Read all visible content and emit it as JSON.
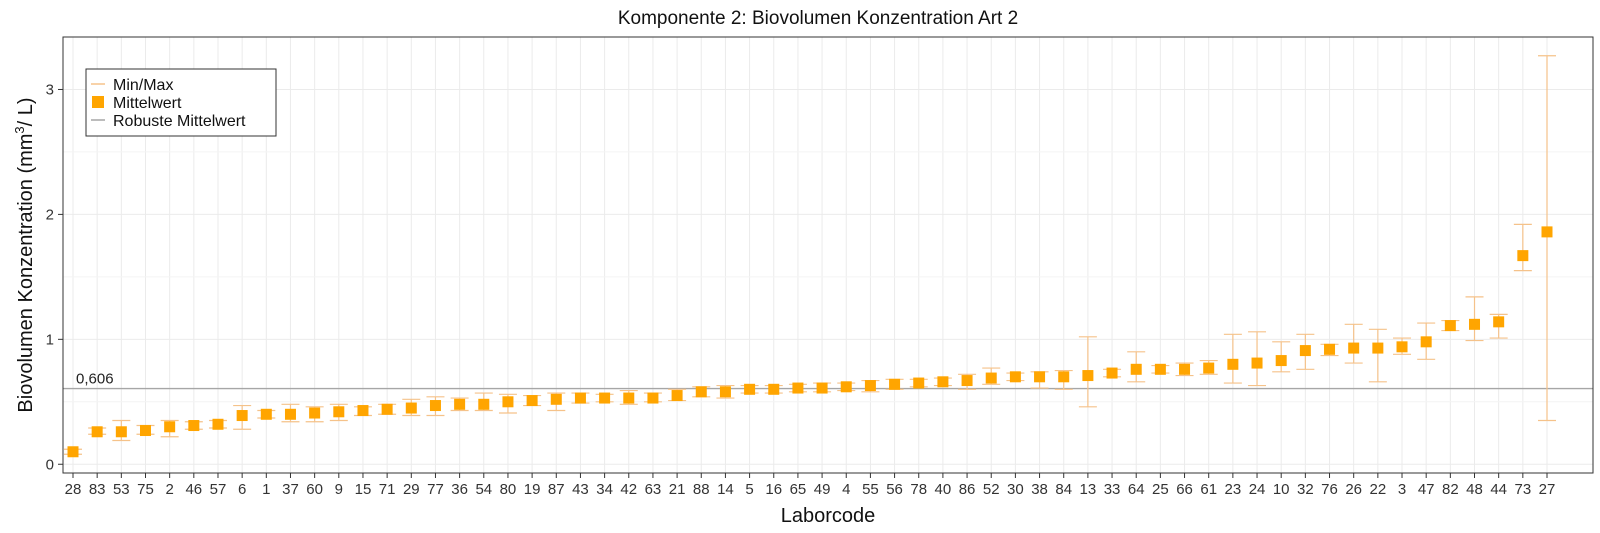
{
  "chart_data": {
    "type": "scatter",
    "title": "Komponente 2: Biovolumen Konzentration Art 2",
    "xlabel": "Laborcode",
    "ylabel_main": "Biovolumen Konzentration  (mm",
    "ylabel_sup": "3",
    "ylabel_tail": "/ L)",
    "ylim": [
      -0.07,
      3.42
    ],
    "yticks": [
      0,
      1,
      2,
      3
    ],
    "ytick_labels": [
      "0",
      "1",
      "2",
      "3"
    ],
    "grid": true,
    "legend_position": "top-left",
    "legend": {
      "minmax": "Min/Max",
      "mean": "Mittelwert",
      "robust": "Robuste Mittelwert"
    },
    "reference_line": {
      "value": 0.606,
      "label": "0,606"
    },
    "colors": {
      "marker": "#FFA500",
      "errorbar": "#F5C28A",
      "refline": "#A6A6A6",
      "grid": "#EBEBEB",
      "frame": "#333333"
    },
    "categories": [
      "28",
      "83",
      "53",
      "75",
      "2",
      "46",
      "57",
      "6",
      "1",
      "37",
      "60",
      "9",
      "15",
      "71",
      "29",
      "77",
      "36",
      "54",
      "80",
      "19",
      "87",
      "43",
      "34",
      "42",
      "63",
      "21",
      "88",
      "14",
      "5",
      "16",
      "65",
      "49",
      "4",
      "55",
      "56",
      "78",
      "40",
      "86",
      "52",
      "30",
      "38",
      "84",
      "13",
      "33",
      "64",
      "25",
      "66",
      "61",
      "23",
      "24",
      "10",
      "32",
      "76",
      "26",
      "22",
      "3",
      "47",
      "82",
      "48",
      "44",
      "73",
      "27"
    ],
    "series": [
      {
        "name": "Mittelwert",
        "values": [
          0.1,
          0.26,
          0.26,
          0.27,
          0.3,
          0.31,
          0.32,
          0.39,
          0.4,
          0.4,
          0.41,
          0.42,
          0.43,
          0.44,
          0.45,
          0.47,
          0.48,
          0.48,
          0.5,
          0.51,
          0.52,
          0.53,
          0.53,
          0.53,
          0.53,
          0.55,
          0.58,
          0.58,
          0.6,
          0.6,
          0.61,
          0.61,
          0.62,
          0.63,
          0.64,
          0.65,
          0.66,
          0.67,
          0.69,
          0.7,
          0.7,
          0.7,
          0.71,
          0.73,
          0.76,
          0.76,
          0.76,
          0.77,
          0.8,
          0.81,
          0.83,
          0.91,
          0.92,
          0.93,
          0.93,
          0.94,
          0.98,
          1.11,
          1.12,
          1.14,
          1.67,
          1.86
        ]
      },
      {
        "name": "Min/Max-min",
        "values": [
          0.08,
          0.24,
          0.19,
          0.24,
          0.22,
          0.28,
          0.29,
          0.28,
          0.37,
          0.34,
          0.34,
          0.35,
          0.39,
          0.4,
          0.39,
          0.39,
          0.43,
          0.43,
          0.41,
          0.47,
          0.43,
          0.49,
          0.5,
          0.48,
          0.5,
          0.51,
          0.54,
          0.53,
          0.57,
          0.57,
          0.58,
          0.58,
          0.59,
          0.58,
          0.6,
          0.62,
          0.63,
          0.6,
          0.64,
          0.67,
          0.61,
          0.6,
          0.46,
          0.7,
          0.66,
          0.73,
          0.71,
          0.72,
          0.65,
          0.63,
          0.74,
          0.76,
          0.87,
          0.81,
          0.66,
          0.88,
          0.84,
          1.07,
          0.99,
          1.01,
          1.55,
          0.35
        ]
      },
      {
        "name": "Min/Max-max",
        "values": [
          0.12,
          0.29,
          0.35,
          0.31,
          0.35,
          0.34,
          0.35,
          0.47,
          0.43,
          0.48,
          0.46,
          0.48,
          0.46,
          0.48,
          0.52,
          0.54,
          0.53,
          0.57,
          0.56,
          0.55,
          0.57,
          0.57,
          0.56,
          0.59,
          0.57,
          0.6,
          0.62,
          0.63,
          0.63,
          0.63,
          0.64,
          0.65,
          0.65,
          0.67,
          0.68,
          0.68,
          0.69,
          0.72,
          0.77,
          0.73,
          0.74,
          0.75,
          1.02,
          0.76,
          0.9,
          0.79,
          0.81,
          0.83,
          1.04,
          1.06,
          0.98,
          1.04,
          0.96,
          1.12,
          1.08,
          1.01,
          1.13,
          1.15,
          1.34,
          1.2,
          1.92,
          3.27
        ]
      }
    ]
  }
}
